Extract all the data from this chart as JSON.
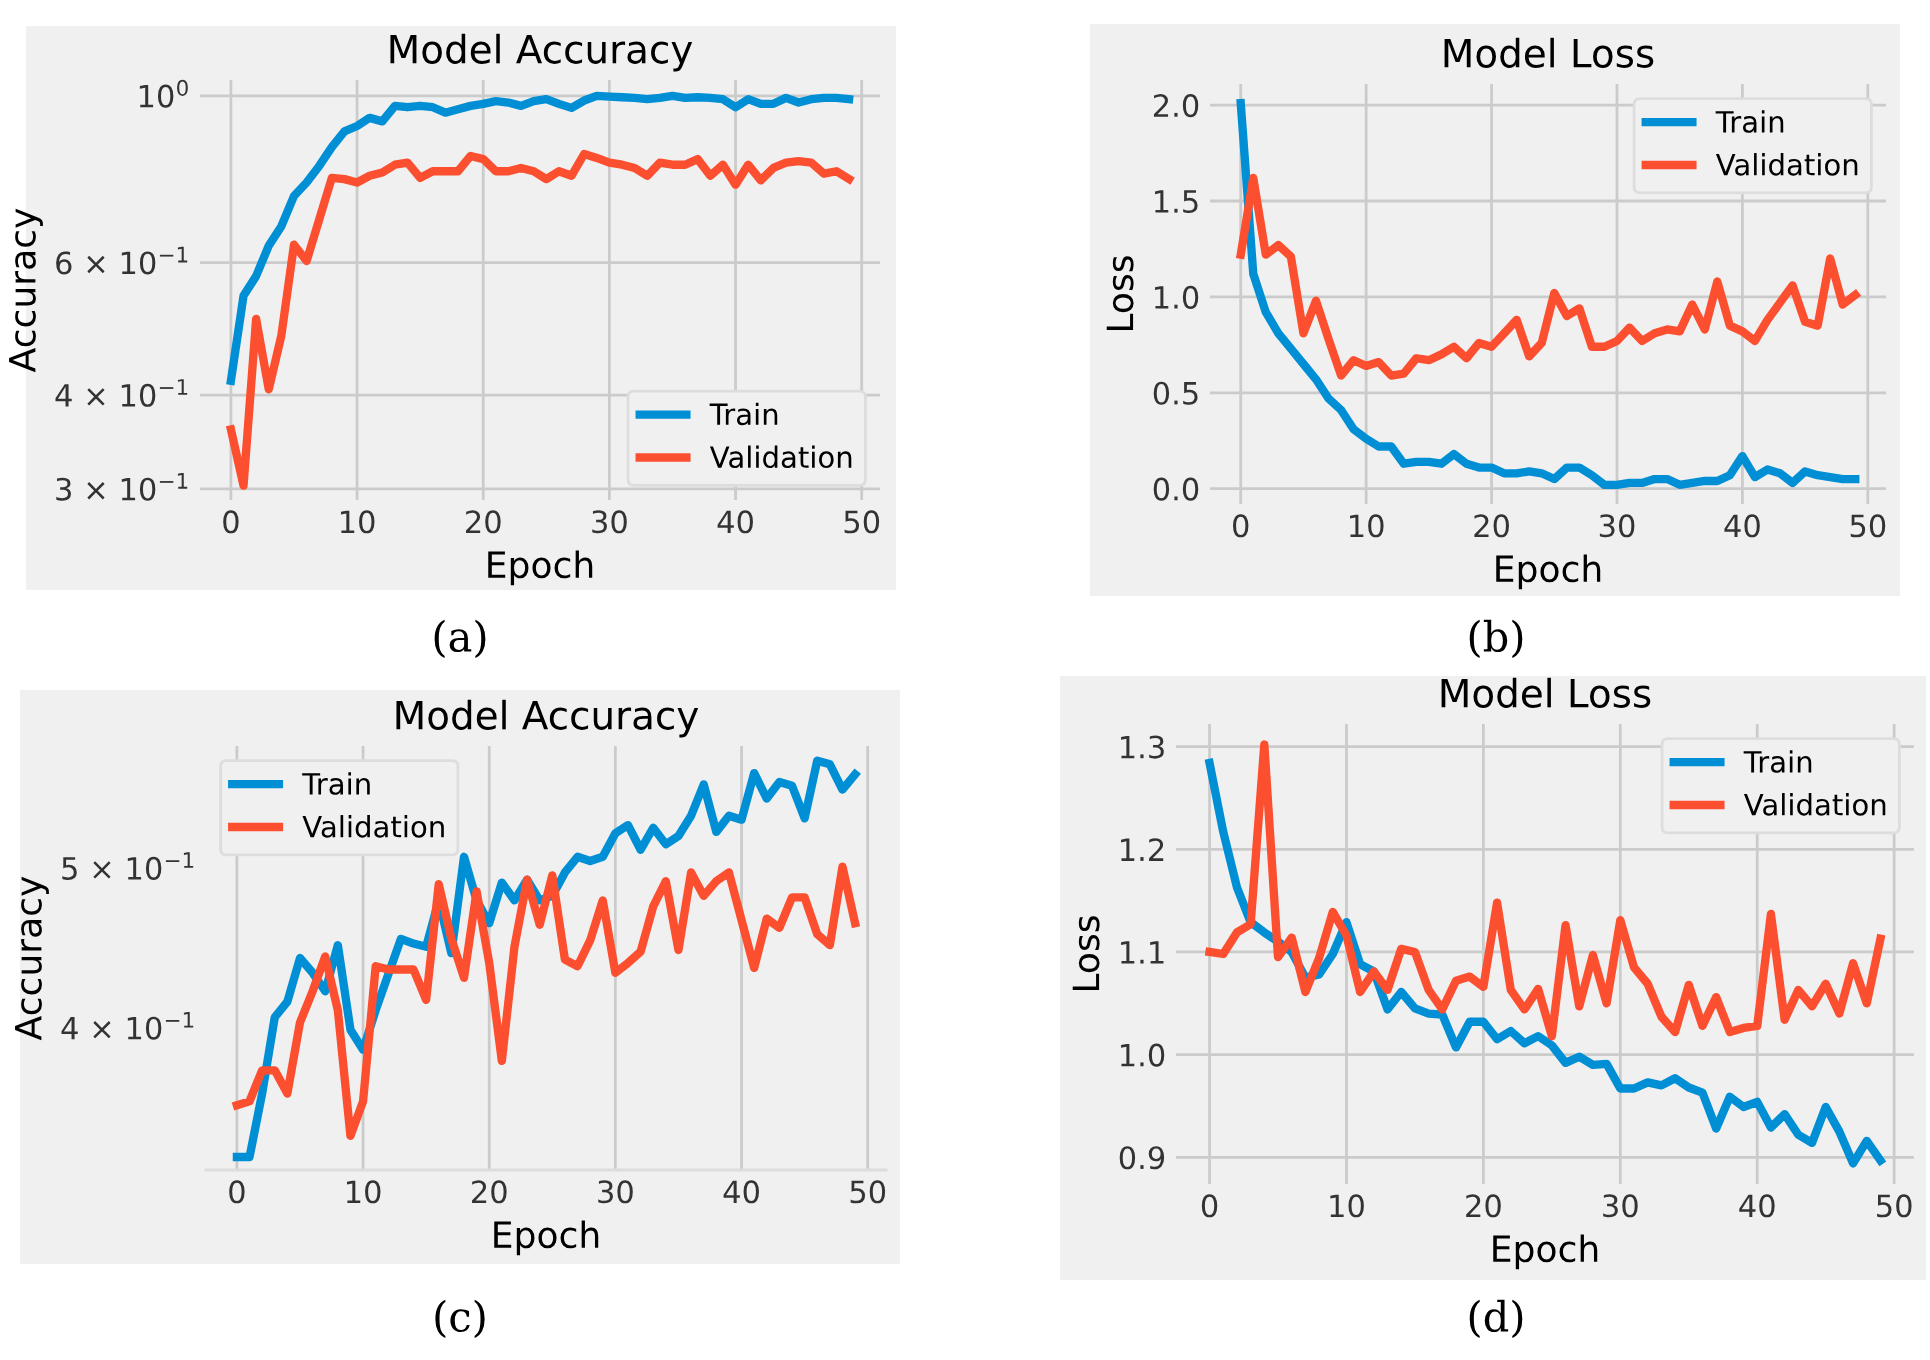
{
  "chart_data": [
    {
      "type": "line",
      "title": "Model Accuracy",
      "xlabel": "Epoch",
      "ylabel": "Accuracy",
      "log": "y",
      "grid": true,
      "legend": "bottom right",
      "xlim": [
        -2.45,
        51.45
      ],
      "xticks": [
        0,
        10,
        20,
        30,
        40,
        50
      ],
      "ylim": [
        0.29,
        1.05
      ],
      "yticks": [
        {
          "value": 0.3,
          "label": "3 × 10$^{−1}$"
        },
        {
          "value": 0.4,
          "label": "4 × 10$^{−1}$"
        },
        {
          "value": 0.6,
          "label": "6 × 10$^{−1}$"
        },
        {
          "value": 1,
          "label": "10$^{0}$"
        }
      ],
      "annotations": [
        "(a)"
      ],
      "x": [
        0,
        1,
        2,
        3,
        4,
        5,
        6,
        7,
        8,
        9,
        10,
        11,
        12,
        13,
        14,
        15,
        16,
        17,
        18,
        19,
        20,
        21,
        22,
        23,
        24,
        25,
        26,
        27,
        28,
        29,
        30,
        31,
        32,
        33,
        34,
        35,
        36,
        37,
        38,
        39,
        40,
        41,
        42,
        43,
        44,
        45,
        46,
        47,
        48,
        49
      ],
      "series": [
        {
          "name": "Train",
          "color": "#008fd5",
          "values": [
            0.418,
            0.542,
            0.576,
            0.632,
            0.671,
            0.736,
            0.767,
            0.807,
            0.855,
            0.897,
            0.912,
            0.935,
            0.925,
            0.97,
            0.966,
            0.97,
            0.966,
            0.95,
            0.96,
            0.97,
            0.976,
            0.984,
            0.98,
            0.97,
            0.984,
            0.99,
            0.976,
            0.964,
            0.986,
            1.0,
            0.998,
            0.996,
            0.994,
            0.99,
            0.994,
            1.0,
            0.994,
            0.996,
            0.994,
            0.99,
            0.966,
            0.99,
            0.976,
            0.976,
            0.994,
            0.98,
            0.99,
            0.994,
            0.994,
            0.99
          ]
        },
        {
          "name": "Validation",
          "color": "#fc4f30",
          "values": [
            0.36,
            0.303,
            0.505,
            0.407,
            0.48,
            0.634,
            0.603,
            0.685,
            0.778,
            0.775,
            0.767,
            0.783,
            0.791,
            0.81,
            0.815,
            0.778,
            0.794,
            0.794,
            0.794,
            0.832,
            0.824,
            0.794,
            0.794,
            0.802,
            0.794,
            0.775,
            0.794,
            0.783,
            0.837,
            0.827,
            0.815,
            0.81,
            0.802,
            0.783,
            0.815,
            0.81,
            0.81,
            0.824,
            0.783,
            0.81,
            0.762,
            0.81,
            0.772,
            0.802,
            0.815,
            0.819,
            0.815,
            0.788,
            0.794,
            0.775
          ]
        }
      ]
    },
    {
      "type": "line",
      "title": "Model Loss",
      "xlabel": "Epoch",
      "ylabel": "Loss",
      "grid": true,
      "legend": "top right",
      "xlim": [
        -2.45,
        51.45
      ],
      "xticks": [
        0,
        10,
        20,
        30,
        40,
        50
      ],
      "ylim": [
        -0.08,
        2.11
      ],
      "yticks": [
        {
          "value": 0,
          "label": "0.0"
        },
        0.5,
        {
          "value": 1,
          "label": "1.0"
        },
        1.5,
        {
          "value": 2,
          "label": "2.0"
        }
      ],
      "annotations": [
        "(b)"
      ],
      "x": [
        0,
        1,
        2,
        3,
        4,
        5,
        6,
        7,
        8,
        9,
        10,
        11,
        12,
        13,
        14,
        15,
        16,
        17,
        18,
        19,
        20,
        21,
        22,
        23,
        24,
        25,
        26,
        27,
        28,
        29,
        30,
        31,
        32,
        33,
        34,
        35,
        36,
        37,
        38,
        39,
        40,
        41,
        42,
        43,
        44,
        45,
        46,
        47,
        48,
        49
      ],
      "series": [
        {
          "name": "Train",
          "color": "#008fd5",
          "values": [
            2.01,
            1.12,
            0.92,
            0.81,
            0.73,
            0.65,
            0.57,
            0.47,
            0.41,
            0.31,
            0.26,
            0.22,
            0.22,
            0.13,
            0.14,
            0.14,
            0.13,
            0.18,
            0.13,
            0.11,
            0.11,
            0.08,
            0.08,
            0.09,
            0.08,
            0.05,
            0.11,
            0.11,
            0.07,
            0.02,
            0.02,
            0.03,
            0.03,
            0.05,
            0.05,
            0.02,
            0.03,
            0.04,
            0.04,
            0.07,
            0.17,
            0.06,
            0.1,
            0.08,
            0.03,
            0.09,
            0.07,
            0.06,
            0.05,
            0.05
          ]
        },
        {
          "name": "Validation",
          "color": "#fc4f30",
          "values": [
            1.22,
            1.62,
            1.22,
            1.27,
            1.21,
            0.81,
            0.98,
            0.78,
            0.59,
            0.67,
            0.64,
            0.66,
            0.59,
            0.6,
            0.68,
            0.67,
            0.7,
            0.74,
            0.68,
            0.76,
            0.74,
            0.81,
            0.88,
            0.69,
            0.76,
            1.02,
            0.9,
            0.94,
            0.74,
            0.74,
            0.77,
            0.84,
            0.77,
            0.81,
            0.83,
            0.82,
            0.96,
            0.83,
            1.08,
            0.85,
            0.82,
            0.77,
            0.88,
            0.97,
            1.06,
            0.87,
            0.85,
            1.2,
            0.96,
            1.01
          ]
        }
      ]
    },
    {
      "type": "line",
      "title": "Model Accuracy",
      "xlabel": "Epoch",
      "ylabel": "Accuracy",
      "log": "y",
      "grid": "x",
      "legend": "top left",
      "xlim": [
        -2.45,
        51.45
      ],
      "xticks": [
        0,
        10,
        20,
        30,
        40,
        50
      ],
      "ylim": [
        0.328,
        0.593
      ],
      "yticks": [
        {
          "value": 0.4,
          "label": "4 × 10$^{−1}$"
        },
        {
          "value": 0.5,
          "label": "5 × 10$^{−1}$"
        }
      ],
      "annotations": [
        "(c)"
      ],
      "x": [
        0,
        1,
        2,
        3,
        4,
        5,
        6,
        7,
        8,
        9,
        10,
        11,
        12,
        13,
        14,
        15,
        16,
        17,
        18,
        19,
        20,
        21,
        22,
        23,
        24,
        25,
        26,
        27,
        28,
        29,
        30,
        31,
        32,
        33,
        34,
        35,
        36,
        37,
        38,
        39,
        40,
        41,
        42,
        43,
        44,
        45,
        46,
        47,
        48,
        49
      ],
      "series": [
        {
          "name": "Train",
          "color": "#008fd5",
          "values": [
            0.334,
            0.334,
            0.365,
            0.406,
            0.415,
            0.441,
            0.432,
            0.421,
            0.449,
            0.399,
            0.388,
            0.41,
            0.431,
            0.453,
            0.45,
            0.448,
            0.478,
            0.444,
            0.508,
            0.478,
            0.463,
            0.49,
            0.478,
            0.492,
            0.478,
            0.481,
            0.497,
            0.508,
            0.505,
            0.508,
            0.525,
            0.531,
            0.513,
            0.529,
            0.517,
            0.523,
            0.538,
            0.562,
            0.526,
            0.538,
            0.535,
            0.571,
            0.551,
            0.564,
            0.561,
            0.536,
            0.581,
            0.578,
            0.558,
            0.57
          ]
        },
        {
          "name": "Validation",
          "color": "#fc4f30",
          "values": [
            0.359,
            0.361,
            0.377,
            0.377,
            0.365,
            0.403,
            0.421,
            0.442,
            0.41,
            0.344,
            0.361,
            0.436,
            0.434,
            0.434,
            0.434,
            0.416,
            0.489,
            0.453,
            0.429,
            0.484,
            0.438,
            0.382,
            0.448,
            0.492,
            0.462,
            0.495,
            0.44,
            0.436,
            0.452,
            0.478,
            0.432,
            0.438,
            0.445,
            0.474,
            0.491,
            0.446,
            0.497,
            0.481,
            0.491,
            0.497,
            0.465,
            0.435,
            0.466,
            0.46,
            0.48,
            0.48,
            0.456,
            0.449,
            0.501,
            0.463
          ]
        }
      ]
    },
    {
      "type": "line",
      "title": "Model Loss",
      "xlabel": "Epoch",
      "ylabel": "Loss",
      "grid": true,
      "legend": "top right",
      "xlim": [
        -2.45,
        51.45
      ],
      "xticks": [
        0,
        10,
        20,
        30,
        40,
        50
      ],
      "ylim": [
        0.874,
        1.322
      ],
      "yticks": [
        0.9,
        {
          "value": 1,
          "label": "1.0"
        },
        1.1,
        1.2,
        1.3
      ],
      "annotations": [
        "(d)"
      ],
      "x": [
        0,
        1,
        2,
        3,
        4,
        5,
        6,
        7,
        8,
        9,
        10,
        11,
        12,
        13,
        14,
        15,
        16,
        17,
        18,
        19,
        20,
        21,
        22,
        23,
        24,
        25,
        26,
        27,
        28,
        29,
        30,
        31,
        32,
        33,
        34,
        35,
        36,
        37,
        38,
        39,
        40,
        41,
        42,
        43,
        44,
        45,
        46,
        47,
        48,
        49
      ],
      "series": [
        {
          "name": "Train",
          "color": "#008fd5",
          "values": [
            1.284,
            1.217,
            1.163,
            1.129,
            1.119,
            1.11,
            1.1,
            1.075,
            1.078,
            1.098,
            1.129,
            1.088,
            1.081,
            1.044,
            1.061,
            1.045,
            1.04,
            1.039,
            1.007,
            1.032,
            1.032,
            1.015,
            1.023,
            1.011,
            1.018,
            1.009,
            0.992,
            0.998,
            0.99,
            0.991,
            0.967,
            0.967,
            0.973,
            0.97,
            0.977,
            0.968,
            0.963,
            0.928,
            0.959,
            0.949,
            0.954,
            0.929,
            0.942,
            0.922,
            0.914,
            0.949,
            0.925,
            0.894,
            0.916,
            0.897
          ]
        },
        {
          "name": "Validation",
          "color": "#fc4f30",
          "values": [
            1.1,
            1.098,
            1.119,
            1.127,
            1.302,
            1.095,
            1.114,
            1.061,
            1.094,
            1.139,
            1.116,
            1.061,
            1.081,
            1.063,
            1.103,
            1.1,
            1.063,
            1.044,
            1.072,
            1.076,
            1.066,
            1.148,
            1.063,
            1.044,
            1.064,
            1.018,
            1.126,
            1.047,
            1.097,
            1.05,
            1.131,
            1.085,
            1.069,
            1.037,
            1.022,
            1.068,
            1.028,
            1.056,
            1.022,
            1.026,
            1.028,
            1.137,
            1.034,
            1.063,
            1.047,
            1.069,
            1.04,
            1.089,
            1.05,
            1.113
          ]
        }
      ]
    }
  ]
}
